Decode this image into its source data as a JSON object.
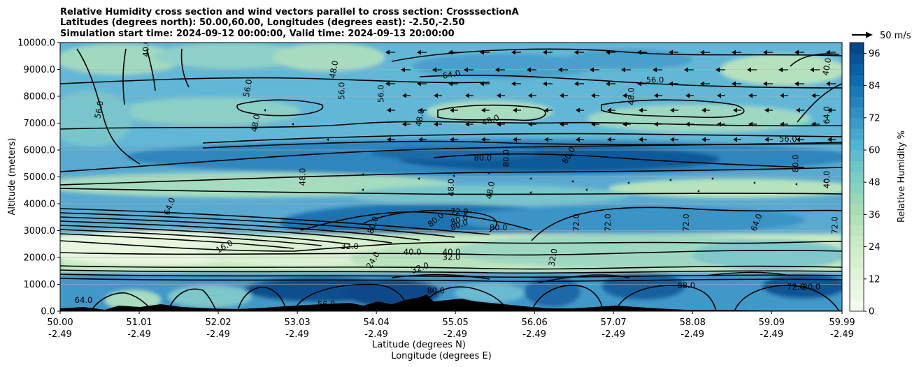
{
  "chart_data": {
    "type": "heatmap",
    "title_lines": [
      "Relative Humidity cross section and wind vectors parallel to cross section: CrosssectionA",
      "Latitudes (degrees north): 50.00,60.00, Longitudes (degrees east): -2.50,-2.50",
      "Simulation start time: 2024-09-12 00:00:00, Valid time: 2024-09-13 20:00:00"
    ],
    "ylabel": "Altitude (meters)",
    "xlabel_lines": [
      "Latitude (degrees N)",
      "Longitude (degrees E)"
    ],
    "ylim": [
      0,
      10000
    ],
    "xlim": [
      50.0,
      59.99
    ],
    "y_ticks": [
      "0.0",
      "1000.0",
      "2000.0",
      "3000.0",
      "4000.0",
      "5000.0",
      "6000.0",
      "7000.0",
      "8000.0",
      "9000.0",
      "10000.0"
    ],
    "x_ticks": [
      {
        "lat": "50.00",
        "lon": "-2.49"
      },
      {
        "lat": "51.01",
        "lon": "-2.49"
      },
      {
        "lat": "52.02",
        "lon": "-2.49"
      },
      {
        "lat": "53.03",
        "lon": "-2.49"
      },
      {
        "lat": "54.04",
        "lon": "-2.49"
      },
      {
        "lat": "55.05",
        "lon": "-2.49"
      },
      {
        "lat": "56.06",
        "lon": "-2.49"
      },
      {
        "lat": "57.07",
        "lon": "-2.49"
      },
      {
        "lat": "58.08",
        "lon": "-2.49"
      },
      {
        "lat": "59.09",
        "lon": "-2.49"
      },
      {
        "lat": "59.99",
        "lon": "-2.49"
      }
    ],
    "grid": true,
    "colorbar": {
      "label": "Relative Humidity %",
      "min": 0,
      "max": 100,
      "step": 4,
      "ticks": [
        "0",
        "12",
        "24",
        "36",
        "48",
        "60",
        "72",
        "84",
        "96"
      ],
      "colormap": "GnBu"
    },
    "wind_key": {
      "label": "50 m/s"
    },
    "contour_labels": [
      {
        "text": "40.0",
        "lat": 51.1,
        "alt": 9800,
        "rot": -90
      },
      {
        "text": "48.0",
        "lat": 53.5,
        "alt": 9000,
        "rot": -80
      },
      {
        "text": "56.0",
        "lat": 50.5,
        "alt": 7500,
        "rot": -80
      },
      {
        "text": "56.0",
        "lat": 52.4,
        "alt": 8300,
        "rot": -80
      },
      {
        "text": "56.0",
        "lat": 53.6,
        "alt": 8200,
        "rot": -90
      },
      {
        "text": "56.0",
        "lat": 54.1,
        "alt": 8100,
        "rot": -90
      },
      {
        "text": "64.0",
        "lat": 55.0,
        "alt": 8800,
        "rot": -10
      },
      {
        "text": "56.0",
        "lat": 57.6,
        "alt": 8600,
        "rot": 0
      },
      {
        "text": "48.0",
        "lat": 57.3,
        "alt": 8000,
        "rot": -90
      },
      {
        "text": "48.0",
        "lat": 55.5,
        "alt": 7100,
        "rot": -20
      },
      {
        "text": "48.0",
        "lat": 54.6,
        "alt": 7200,
        "rot": -80
      },
      {
        "text": "48.0",
        "lat": 52.5,
        "alt": 7000,
        "rot": -80
      },
      {
        "text": "56.0",
        "lat": 59.3,
        "alt": 6400,
        "rot": 0
      },
      {
        "text": "64.0",
        "lat": 59.8,
        "alt": 7300,
        "rot": -90
      },
      {
        "text": "40.0",
        "lat": 59.8,
        "alt": 9100,
        "rot": -80
      },
      {
        "text": "80.0",
        "lat": 55.4,
        "alt": 5700,
        "rot": 0
      },
      {
        "text": "80.0",
        "lat": 55.7,
        "alt": 5700,
        "rot": -90
      },
      {
        "text": "80.0",
        "lat": 56.5,
        "alt": 5800,
        "rot": -60
      },
      {
        "text": "80.0",
        "lat": 59.4,
        "alt": 5500,
        "rot": -90
      },
      {
        "text": "48.0",
        "lat": 53.1,
        "alt": 5000,
        "rot": -90
      },
      {
        "text": "40.0",
        "lat": 59.8,
        "alt": 4900,
        "rot": -90
      },
      {
        "text": "48.0",
        "lat": 55.0,
        "alt": 4600,
        "rot": -90
      },
      {
        "text": "48.0",
        "lat": 55.5,
        "alt": 4500,
        "rot": -80
      },
      {
        "text": "64.0",
        "lat": 51.4,
        "alt": 3900,
        "rot": -70
      },
      {
        "text": "72.0",
        "lat": 55.1,
        "alt": 3700,
        "rot": 0
      },
      {
        "text": "80.0",
        "lat": 55.1,
        "alt": 3400,
        "rot": -20
      },
      {
        "text": "80.0",
        "lat": 54.8,
        "alt": 3400,
        "rot": -40
      },
      {
        "text": "80.0",
        "lat": 55.1,
        "alt": 3200,
        "rot": -20
      },
      {
        "text": "80.0",
        "lat": 55.6,
        "alt": 3100,
        "rot": 0
      },
      {
        "text": "80.0",
        "lat": 54.0,
        "alt": 3200,
        "rot": -70
      },
      {
        "text": "72.0",
        "lat": 56.6,
        "alt": 3300,
        "rot": -90
      },
      {
        "text": "72.0",
        "lat": 57.0,
        "alt": 3300,
        "rot": -90
      },
      {
        "text": "72.0",
        "lat": 58.0,
        "alt": 3300,
        "rot": -90
      },
      {
        "text": "64.0",
        "lat": 58.9,
        "alt": 3300,
        "rot": -70
      },
      {
        "text": "72.0",
        "lat": 59.9,
        "alt": 3200,
        "rot": -90
      },
      {
        "text": "16.0",
        "lat": 52.1,
        "alt": 2400,
        "rot": -30
      },
      {
        "text": "32.0",
        "lat": 53.7,
        "alt": 2400,
        "rot": 0
      },
      {
        "text": "40.0",
        "lat": 54.5,
        "alt": 2200,
        "rot": 0
      },
      {
        "text": "40.0",
        "lat": 55.0,
        "alt": 2200,
        "rot": 0
      },
      {
        "text": "32.0",
        "lat": 55.0,
        "alt": 2000,
        "rot": 0
      },
      {
        "text": "32.0",
        "lat": 54.6,
        "alt": 1600,
        "rot": -20
      },
      {
        "text": "24.0",
        "lat": 54.0,
        "alt": 1900,
        "rot": -60
      },
      {
        "text": "32.0",
        "lat": 56.3,
        "alt": 2000,
        "rot": -80
      },
      {
        "text": "88.0",
        "lat": 58.0,
        "alt": 950,
        "rot": 0
      },
      {
        "text": "56.0",
        "lat": 53.4,
        "alt": 250,
        "rot": 0
      },
      {
        "text": "64.0",
        "lat": 50.3,
        "alt": 400,
        "rot": 0
      },
      {
        "text": "80.0",
        "lat": 54.8,
        "alt": 750,
        "rot": 0
      },
      {
        "text": "72.0",
        "lat": 59.4,
        "alt": 900,
        "rot": 0
      },
      {
        "text": "80.0",
        "lat": 59.6,
        "alt": 900,
        "rot": 0
      }
    ]
  }
}
